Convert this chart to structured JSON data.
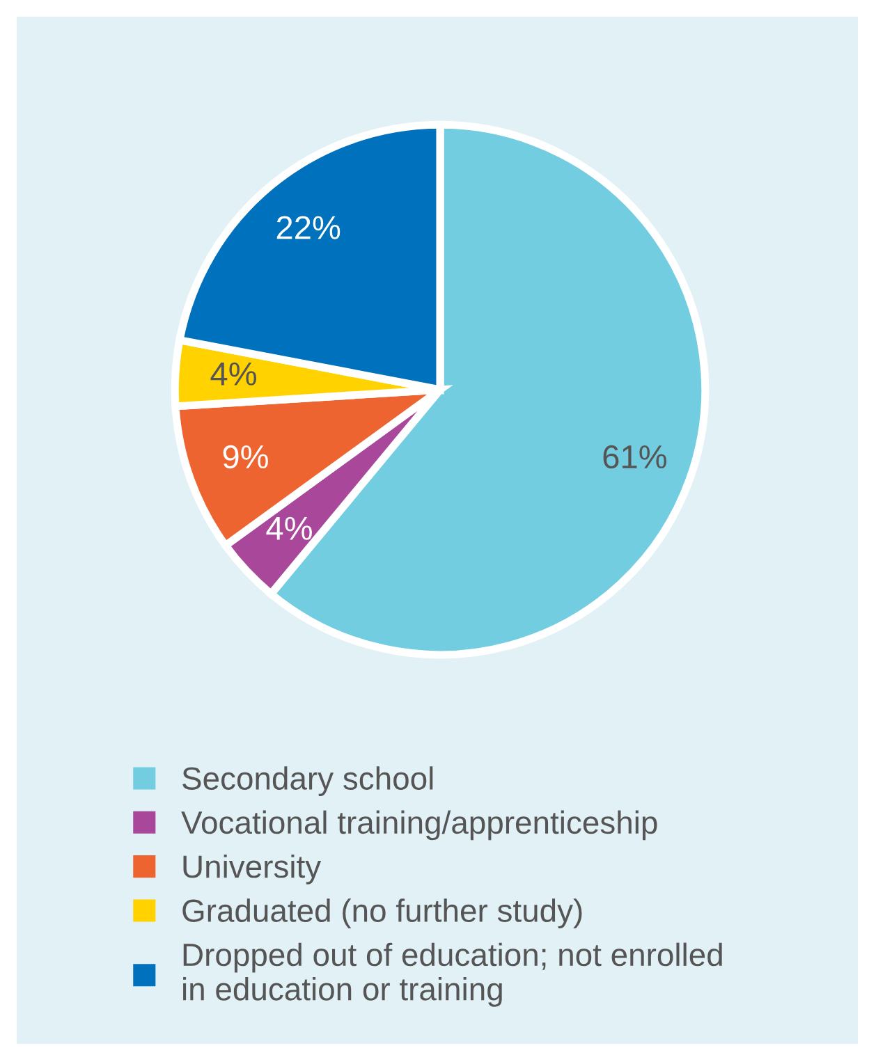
{
  "chart_data": {
    "type": "pie",
    "categories": [
      "Secondary school",
      "Vocational training/apprenticeship",
      "University",
      "Graduated (no further study)",
      "Dropped out of education; not enrolled\nin education or training"
    ],
    "values": [
      61,
      4,
      9,
      4,
      22
    ],
    "colors": [
      "#72cde0",
      "#a9479b",
      "#ee6430",
      "#ffd200",
      "#0071bc"
    ],
    "value_labels": [
      "61%",
      "4%",
      "9%",
      "4%",
      "22%"
    ],
    "legend": "bottom"
  }
}
